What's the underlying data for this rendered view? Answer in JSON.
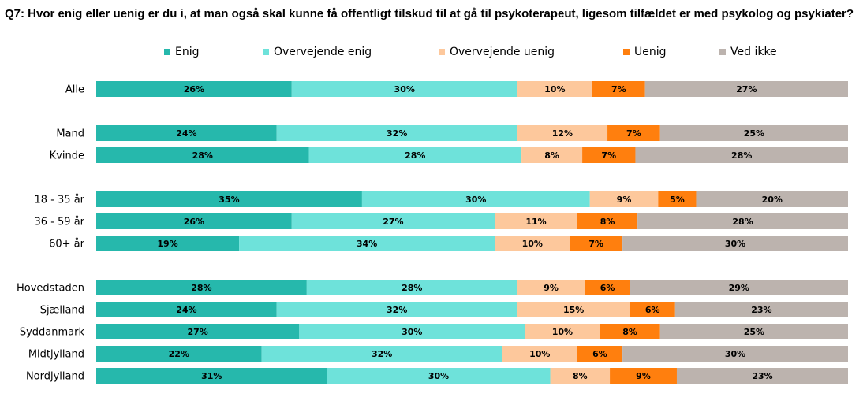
{
  "chart_data": {
    "type": "bar",
    "orientation": "horizontal",
    "stacked": true,
    "percent_stacked": true,
    "title": "Q7: Hvor enig eller uenig er du i, at man også skal kunne få offentligt tilskud til at gå til psykoterapeut, ligesom tilfældet er med psykolog og psykiater?",
    "legend_position": "top",
    "grid": false,
    "categories": [
      "Alle",
      "Mand",
      "Kvinde",
      "18 - 35 år",
      "36 - 59 år",
      "60+ år",
      "Hovedstaden",
      "Sjælland",
      "Syddanmark",
      "Midtjylland",
      "Nordjylland"
    ],
    "groups": [
      [
        0
      ],
      [
        1,
        2
      ],
      [
        3,
        4,
        5
      ],
      [
        6,
        7,
        8,
        9,
        10
      ]
    ],
    "series": [
      {
        "name": "Enig",
        "color": "#26B8AC",
        "values": [
          26,
          24,
          28,
          35,
          26,
          19,
          28,
          24,
          27,
          22,
          31
        ]
      },
      {
        "name": "Overvejende enig",
        "color": "#6EE2DA",
        "values": [
          30,
          32,
          28,
          30,
          27,
          34,
          28,
          32,
          30,
          32,
          30
        ]
      },
      {
        "name": "Overvejende uenig",
        "color": "#FDC89C",
        "values": [
          10,
          12,
          8,
          9,
          11,
          10,
          9,
          15,
          10,
          10,
          8
        ]
      },
      {
        "name": "Uenig",
        "color": "#FF7F0E",
        "values": [
          7,
          7,
          7,
          5,
          8,
          7,
          6,
          6,
          8,
          6,
          9
        ]
      },
      {
        "name": "Ved ikke",
        "color": "#BCB3AE",
        "values": [
          27,
          25,
          28,
          20,
          28,
          30,
          29,
          23,
          25,
          30,
          23
        ]
      }
    ]
  }
}
